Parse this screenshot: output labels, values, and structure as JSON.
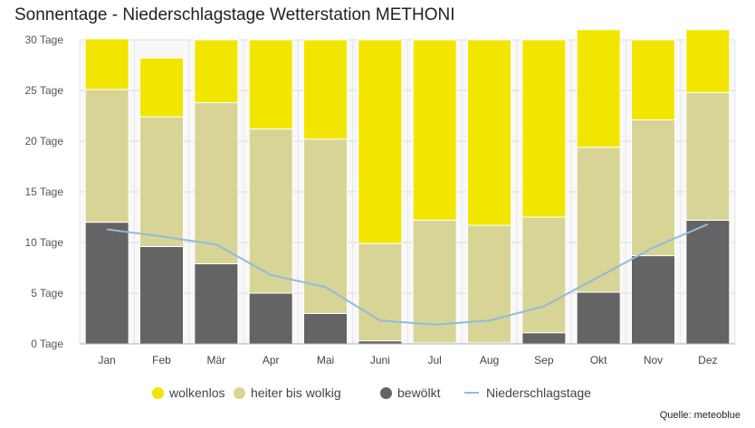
{
  "chart_data": {
    "type": "bar",
    "stacked": true,
    "title": "Sonnentage - Niederschlagstage Wetterstation METHONI",
    "source": "Quelle: meteoblue",
    "categories": [
      "Jan",
      "Feb",
      "Mär",
      "Apr",
      "Mai",
      "Juni",
      "Jul",
      "Aug",
      "Sep",
      "Okt",
      "Nov",
      "Dez"
    ],
    "y_ticks": [
      "0 Tage",
      "5 Tage",
      "10 Tage",
      "15 Tage",
      "20 Tage",
      "25 Tage",
      "30 Tage"
    ],
    "ylim": [
      0,
      30
    ],
    "grid": true,
    "legend_position": "bottom",
    "series": [
      {
        "name": "bewölkt",
        "kind": "bar",
        "color": "#646464",
        "values": [
          12.0,
          9.6,
          7.9,
          5.0,
          3.0,
          0.3,
          0.1,
          0.1,
          1.1,
          5.1,
          8.7,
          12.2
        ]
      },
      {
        "name": "heiter bis wolkig",
        "kind": "bar",
        "color": "#d7d496",
        "values": [
          13.1,
          12.8,
          15.9,
          16.2,
          17.2,
          9.6,
          12.1,
          11.6,
          11.4,
          14.3,
          13.4,
          12.6
        ]
      },
      {
        "name": "wolkenlos",
        "kind": "bar",
        "color": "#f2e600",
        "values": [
          5.0,
          5.8,
          6.2,
          8.8,
          9.8,
          20.1,
          17.8,
          18.3,
          17.5,
          11.6,
          7.9,
          6.2
        ]
      },
      {
        "name": "Niederschlagstage",
        "kind": "line",
        "color": "#8fbbdf",
        "values": [
          11.3,
          10.6,
          9.8,
          6.8,
          5.6,
          2.3,
          1.9,
          2.3,
          3.7,
          6.6,
          9.5,
          11.8
        ]
      }
    ]
  }
}
